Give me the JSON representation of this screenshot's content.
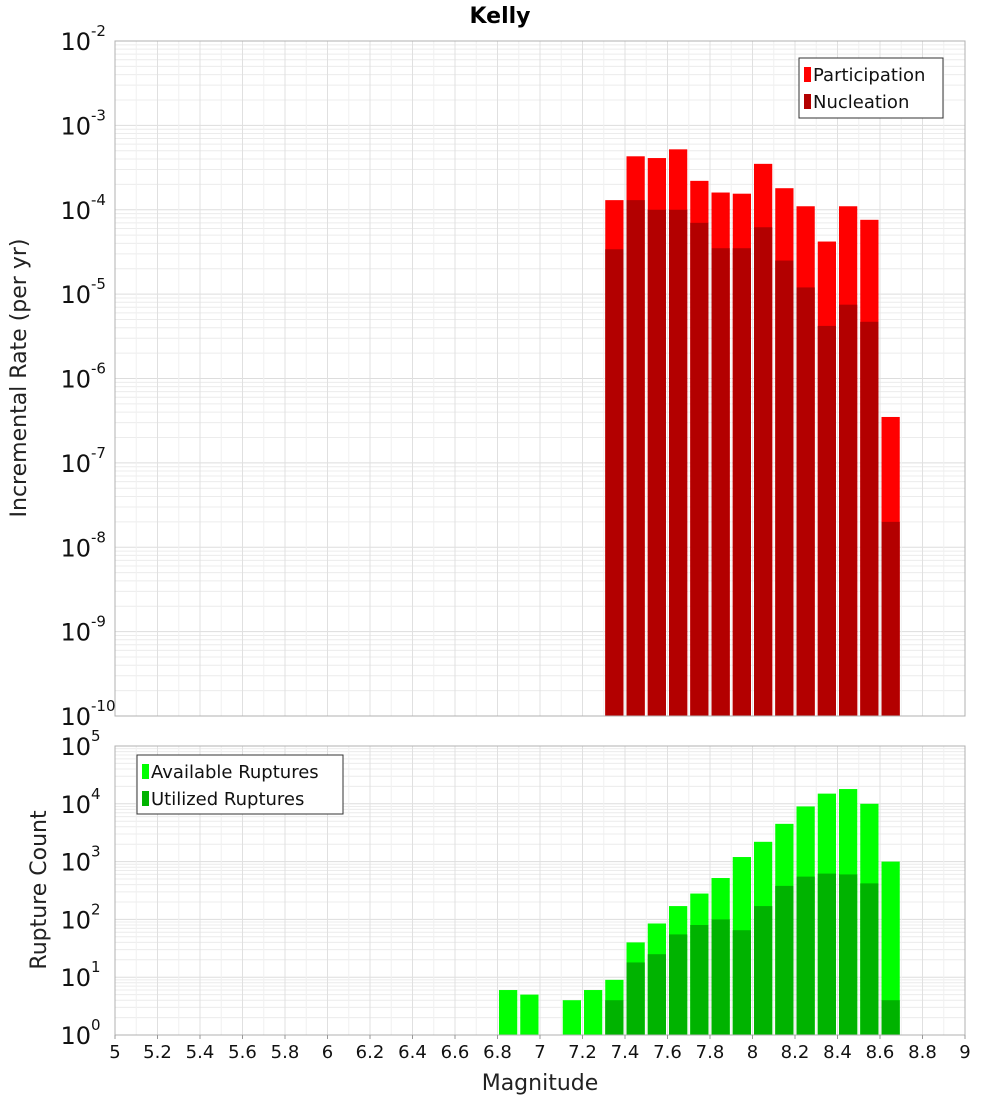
{
  "chart_data": [
    {
      "type": "bar",
      "title": "Kelly",
      "ylabel": "Incremental Rate (per yr)",
      "xlabel": "",
      "yscale": "log",
      "ylim": [
        1e-10,
        0.01
      ],
      "xlim": [
        5,
        9
      ],
      "legend_position": "top-right",
      "ytick_exponents": [
        "-10",
        "-9",
        "-8",
        "-7",
        "-6",
        "-5",
        "-4",
        "-3",
        "-2"
      ],
      "bar_width": 0.1,
      "x": [
        7.35,
        7.45,
        7.55,
        7.65,
        7.75,
        7.85,
        7.95,
        8.05,
        8.15,
        8.25,
        8.35,
        8.45,
        8.55,
        8.65
      ],
      "series": [
        {
          "name": "Participation",
          "color": "#ff0000",
          "values": [
            0.00013,
            0.00043,
            0.00041,
            0.00052,
            0.00022,
            0.00016,
            0.000155,
            0.00035,
            0.00018,
            0.00011,
            4.2e-05,
            0.00011,
            7.6e-05,
            3.5e-07
          ]
        },
        {
          "name": "Nucleation",
          "color": "#b30000",
          "values": [
            3.4e-05,
            0.00013,
            0.0001,
            0.0001,
            7e-05,
            3.5e-05,
            3.5e-05,
            6.2e-05,
            2.5e-05,
            1.2e-05,
            4.2e-06,
            7.5e-06,
            4.7e-06,
            2e-08
          ]
        }
      ]
    },
    {
      "type": "bar",
      "title": "",
      "ylabel": "Rupture Count",
      "xlabel": "Magnitude",
      "yscale": "log",
      "ylim": [
        1,
        100000
      ],
      "xlim": [
        5,
        9
      ],
      "legend_position": "top-left",
      "ytick_exponents": [
        "0",
        "1",
        "2",
        "3",
        "4",
        "5"
      ],
      "xticks": [
        "5",
        "5.2",
        "5.4",
        "5.6",
        "5.8",
        "6",
        "6.2",
        "6.4",
        "6.6",
        "6.8",
        "7",
        "7.2",
        "7.4",
        "7.6",
        "7.8",
        "8",
        "8.2",
        "8.4",
        "8.6",
        "8.8",
        "9"
      ],
      "bar_width": 0.1,
      "x": [
        6.85,
        6.95,
        7.15,
        7.25,
        7.35,
        7.45,
        7.55,
        7.65,
        7.75,
        7.85,
        7.95,
        8.05,
        8.15,
        8.25,
        8.35,
        8.45,
        8.55,
        8.65
      ],
      "series": [
        {
          "name": "Available Ruptures",
          "color": "#00ff00",
          "values": [
            6,
            5,
            4,
            6,
            9,
            40,
            85,
            170,
            280,
            520,
            1200,
            2200,
            4500,
            9000,
            15000,
            18000,
            10000,
            1000
          ]
        },
        {
          "name": "Utilized Ruptures",
          "color": "#00b300",
          "values": [
            null,
            null,
            1,
            1,
            4,
            18,
            25,
            55,
            80,
            100,
            65,
            170,
            380,
            550,
            620,
            600,
            420,
            4
          ]
        }
      ]
    }
  ]
}
